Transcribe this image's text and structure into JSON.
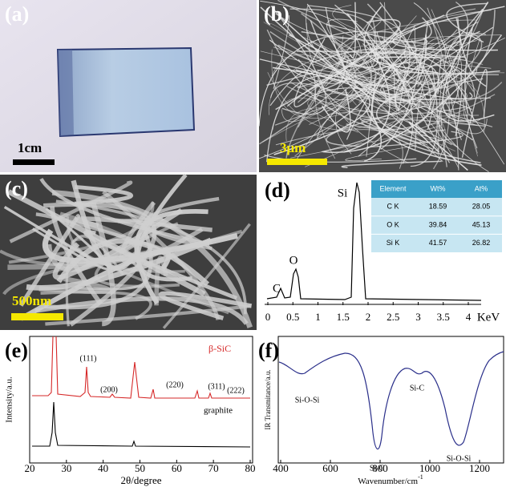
{
  "panels": [
    {
      "label": "(a)",
      "scale_bar": "1cm"
    },
    {
      "label": "(b)",
      "scale_bar": "3μm"
    },
    {
      "label": "(c)",
      "scale_bar": "500nm"
    },
    {
      "label": "(d)",
      "peaks": [
        "C",
        "O",
        "Si"
      ],
      "x_ticks": [
        0,
        0.5,
        1,
        1.5,
        2,
        2.5,
        3,
        3.5,
        4
      ],
      "x_unit": "KeV",
      "table": {
        "header": [
          "Element",
          "Wt%",
          "At%"
        ],
        "rows": [
          [
            "C K",
            18.59,
            28.05
          ],
          [
            "O K",
            39.84,
            45.13
          ],
          [
            "Si K",
            41.57,
            26.82
          ]
        ]
      }
    },
    {
      "label": "(e)",
      "x_label": "2θ/degree",
      "y_label": "Intensity/a.u.",
      "x_ticks": [
        20,
        30,
        40,
        50,
        60,
        70,
        80
      ],
      "series": [
        "β-SiC",
        "graphite"
      ],
      "peaks": [
        "(111)",
        "(200)",
        "(220)",
        "(311)",
        "(222)"
      ]
    },
    {
      "label": "(f)",
      "x_label": "Wavenumber/cm",
      "x_label_sup": "-1",
      "y_label": "IR Transmitance/a.u.",
      "x_ticks": [
        400,
        600,
        800,
        1000,
        1200
      ],
      "peaks": [
        "Si-O-Si",
        "Si-C",
        "Si-C",
        "Si-O-Si"
      ]
    }
  ]
}
